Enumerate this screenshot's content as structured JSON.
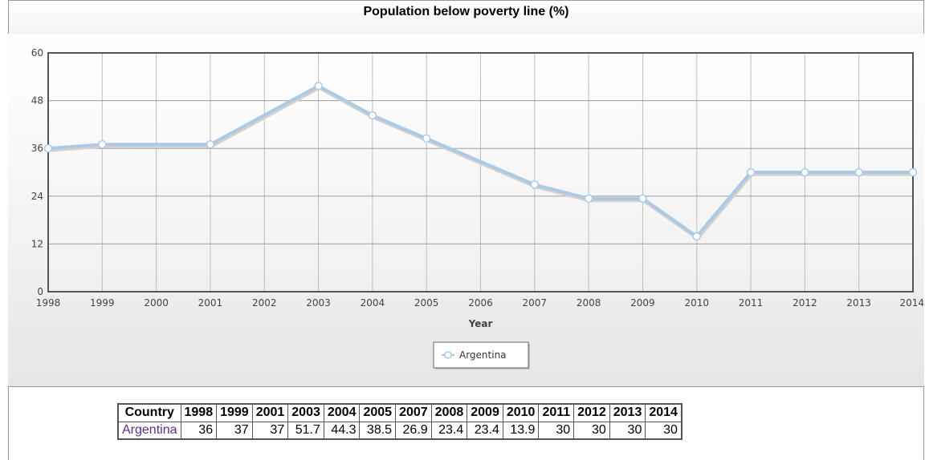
{
  "chart_data": {
    "type": "line",
    "title": "Population below poverty line (%)",
    "xlabel": "Year",
    "ylabel": "",
    "x": [
      1998,
      1999,
      2001,
      2003,
      2004,
      2005,
      2007,
      2008,
      2009,
      2010,
      2011,
      2012,
      2013,
      2014
    ],
    "x_ticks": [
      1998,
      1999,
      2000,
      2001,
      2002,
      2003,
      2004,
      2005,
      2006,
      2007,
      2008,
      2009,
      2010,
      2011,
      2012,
      2013,
      2014
    ],
    "xlim": [
      1998,
      2014
    ],
    "ylim": [
      0,
      60
    ],
    "y_ticks": [
      0,
      12,
      24,
      36,
      48,
      60
    ],
    "grid": true,
    "legend": "bottom-center",
    "series": [
      {
        "name": "Argentina",
        "color": "#a9cbe8",
        "values": [
          36,
          37,
          37,
          51.7,
          44.3,
          38.5,
          26.9,
          23.4,
          23.4,
          13.9,
          30,
          30,
          30,
          30
        ]
      }
    ]
  },
  "table": {
    "header_label": "Country",
    "years": [
      "1998",
      "1999",
      "2001",
      "2003",
      "2004",
      "2005",
      "2007",
      "2008",
      "2009",
      "2010",
      "2011",
      "2012",
      "2013",
      "2014"
    ],
    "rows": [
      {
        "country": "Argentina",
        "values": [
          "36",
          "37",
          "37",
          "51.7",
          "44.3",
          "38.5",
          "26.9",
          "23.4",
          "23.4",
          "13.9",
          "30",
          "30",
          "30",
          "30"
        ]
      }
    ]
  }
}
